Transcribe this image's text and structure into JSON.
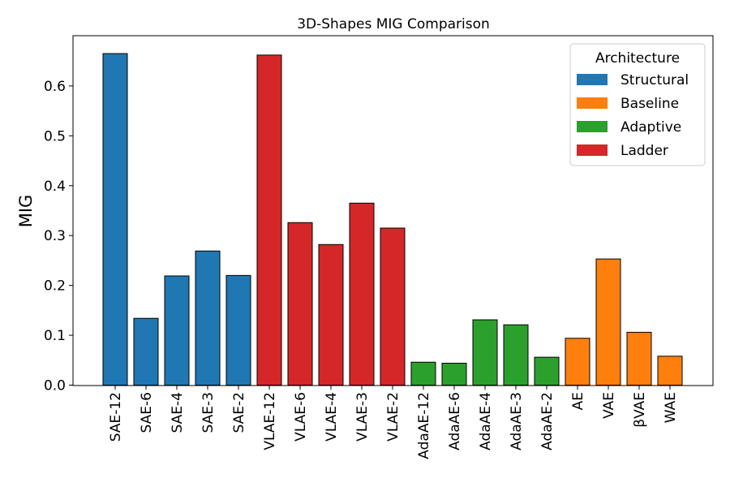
{
  "chart_data": {
    "type": "bar",
    "title": "3D-Shapes MIG Comparison",
    "xlabel": "",
    "ylabel": "MIG",
    "ylim": [
      0,
      0.7
    ],
    "yticks": [
      "0.0",
      "0.1",
      "0.2",
      "0.3",
      "0.4",
      "0.5",
      "0.6"
    ],
    "grid": false,
    "legend_position": "top-right",
    "legend_title": "Architecture",
    "groups": [
      {
        "name": "Structural",
        "color": "#1f77b4"
      },
      {
        "name": "Baseline",
        "color": "#ff7f0e"
      },
      {
        "name": "Adaptive",
        "color": "#2ca02c"
      },
      {
        "name": "Ladder",
        "color": "#d62728"
      }
    ],
    "categories": [
      "SAE-12",
      "SAE-6",
      "SAE-4",
      "SAE-3",
      "SAE-2",
      "VLAE-12",
      "VLAE-6",
      "VLAE-4",
      "VLAE-3",
      "VLAE-2",
      "AdaAE-12",
      "AdaAE-6",
      "AdaAE-4",
      "AdaAE-3",
      "AdaAE-2",
      "AE",
      "VAE",
      "βVAE",
      "WAE"
    ],
    "values": [
      0.665,
      0.134,
      0.219,
      0.269,
      0.22,
      0.662,
      0.326,
      0.282,
      0.365,
      0.315,
      0.046,
      0.044,
      0.131,
      0.121,
      0.056,
      0.094,
      0.253,
      0.106,
      0.058
    ],
    "bar_groups": [
      "Structural",
      "Structural",
      "Structural",
      "Structural",
      "Structural",
      "Ladder",
      "Ladder",
      "Ladder",
      "Ladder",
      "Ladder",
      "Adaptive",
      "Adaptive",
      "Adaptive",
      "Adaptive",
      "Adaptive",
      "Baseline",
      "Baseline",
      "Baseline",
      "Baseline"
    ]
  }
}
